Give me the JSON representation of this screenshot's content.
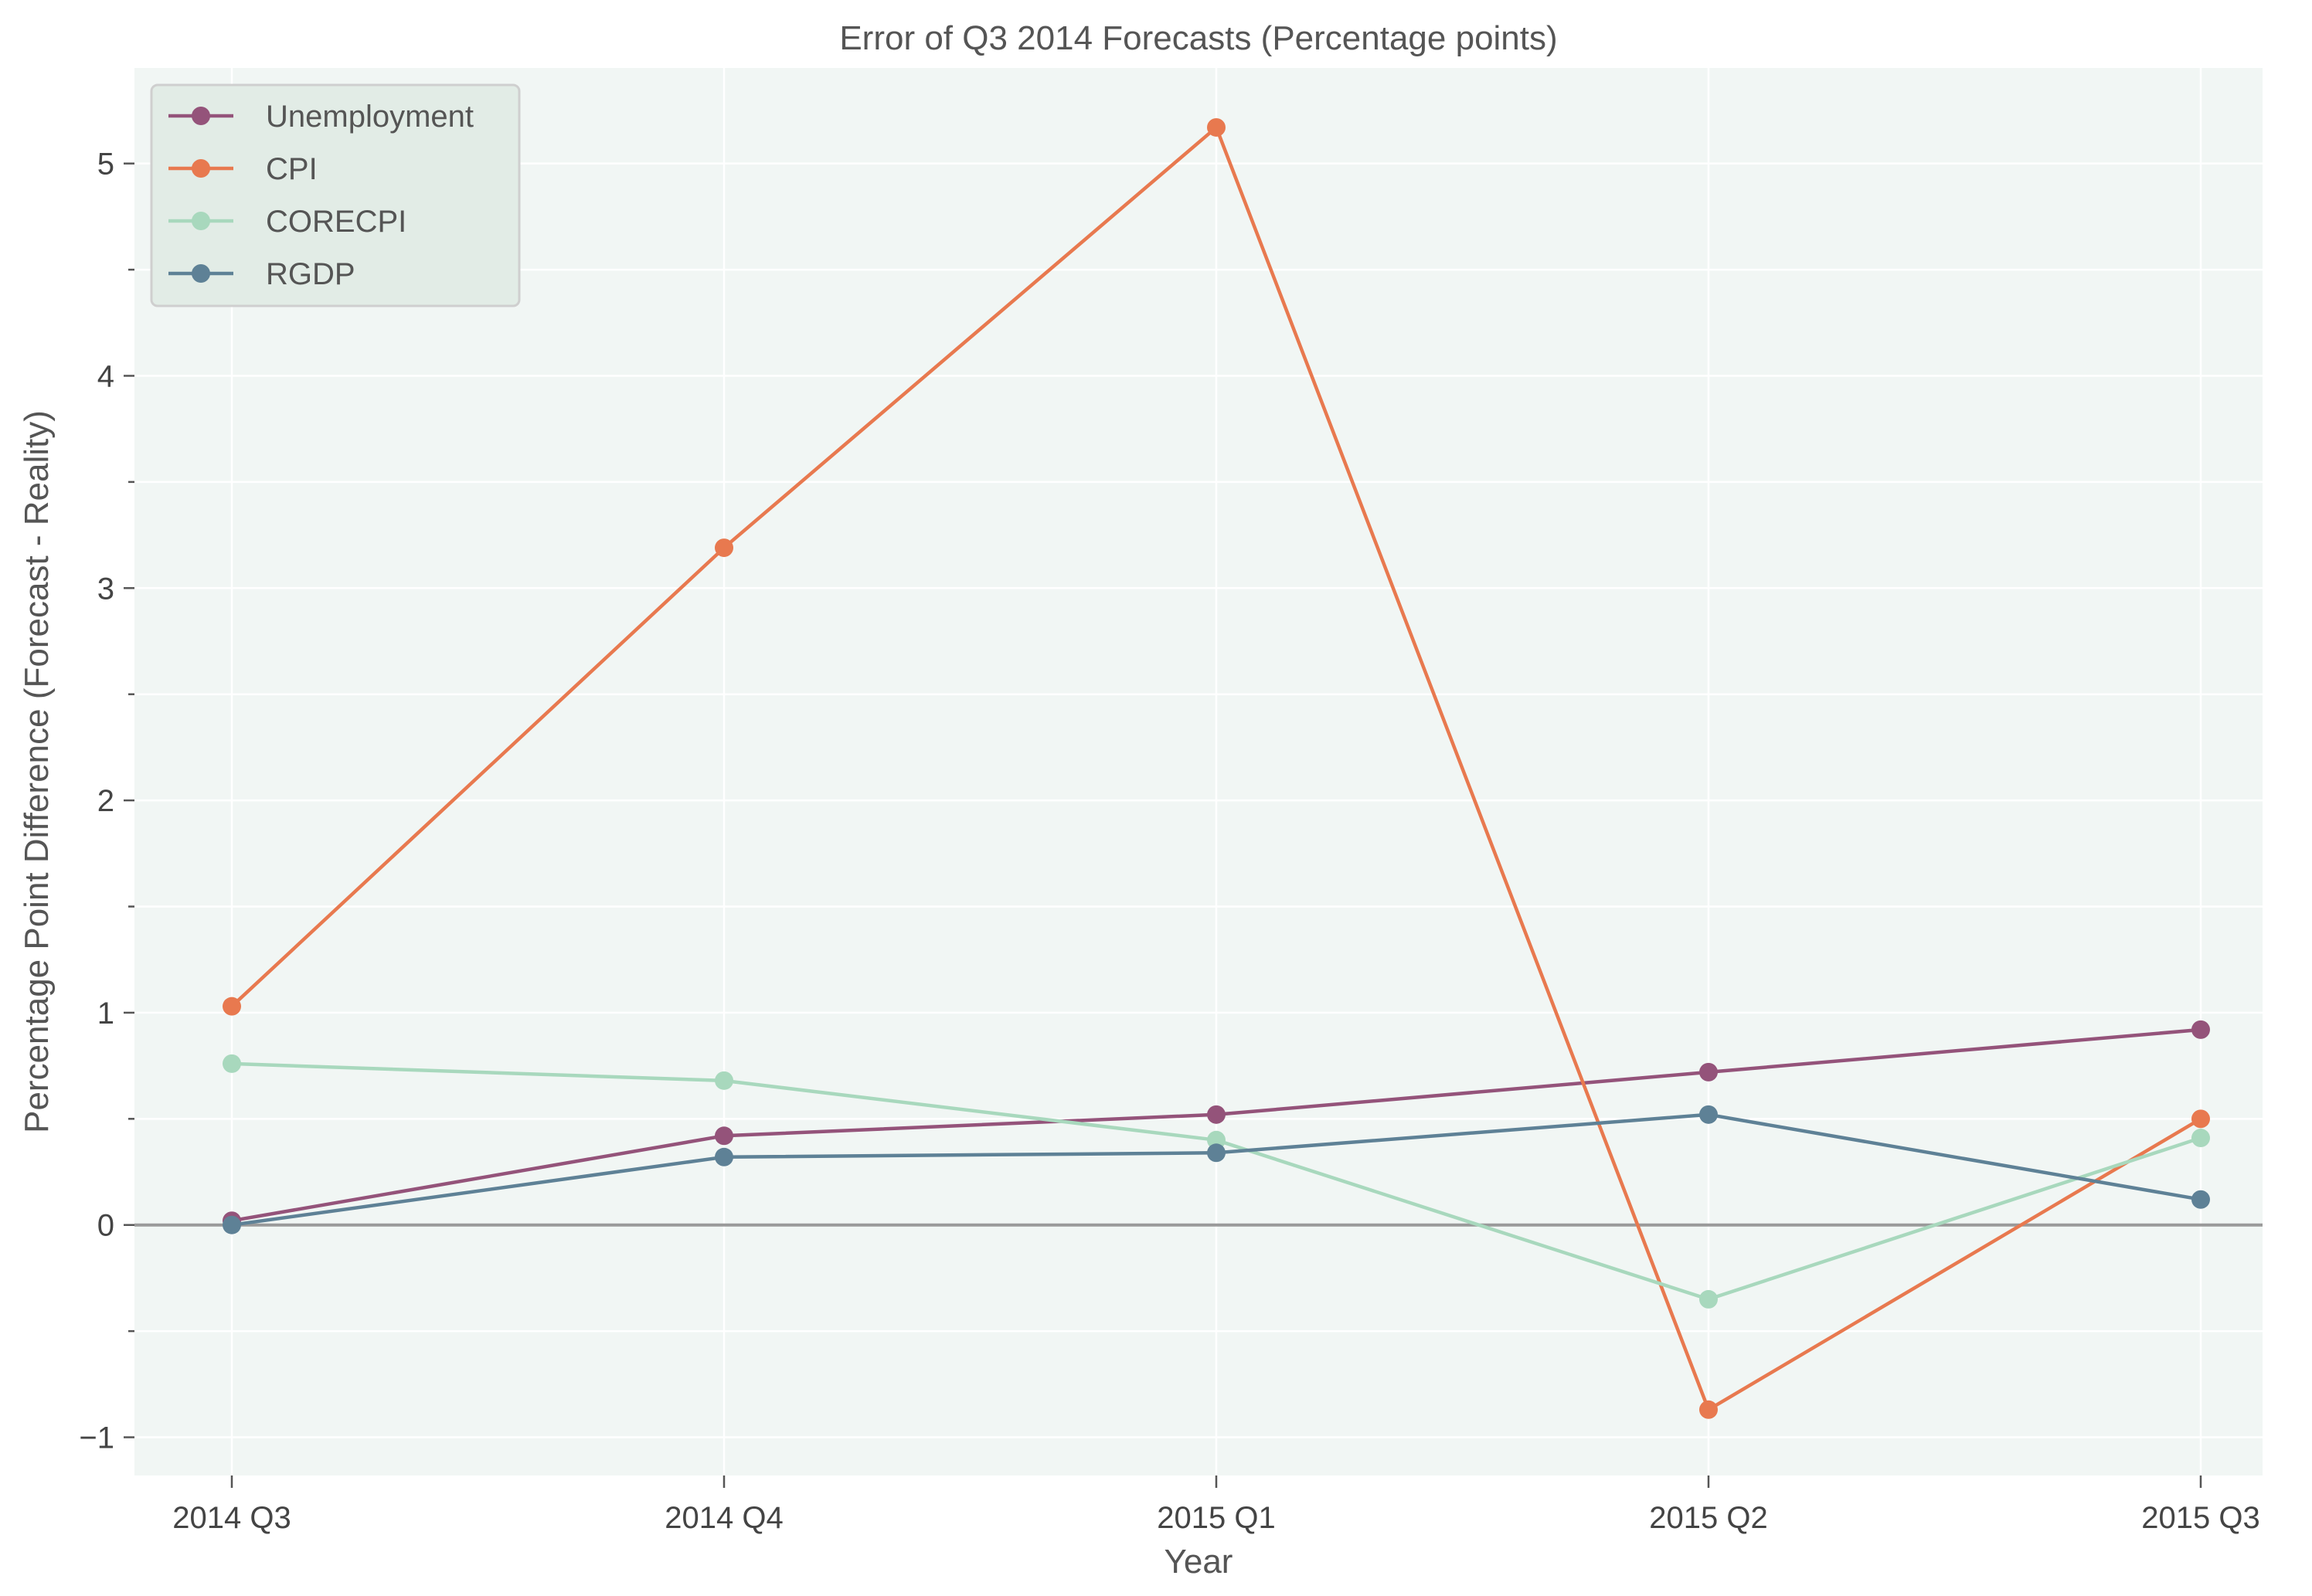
{
  "chart_data": {
    "type": "line",
    "title": "Error of Q3 2014 Forecasts (Percentage points)",
    "xlabel": "Year",
    "ylabel": "Percentage Point Difference (Forecast - Reality)",
    "categories": [
      "2014 Q3",
      "2014 Q4",
      "2015 Q1",
      "2015 Q2",
      "2015 Q3"
    ],
    "ylim": [
      -1.18,
      5.45
    ],
    "yticks": [
      -1,
      0,
      1,
      2,
      3,
      4,
      5
    ],
    "ytick_labels": [
      "−1",
      "0",
      "1",
      "2",
      "3",
      "4",
      "5"
    ],
    "grid": true,
    "legend_position": "top-left",
    "zero_line": true,
    "series": [
      {
        "name": "Unemployment",
        "color": "#94537a",
        "values": [
          0.02,
          0.42,
          0.52,
          0.72,
          0.92
        ]
      },
      {
        "name": "CPI",
        "color": "#e8794f",
        "values": [
          1.03,
          3.19,
          5.17,
          -0.87,
          0.5
        ]
      },
      {
        "name": "CORECPI",
        "color": "#a8d8bd",
        "values": [
          0.76,
          0.68,
          0.4,
          -0.35,
          0.41
        ]
      },
      {
        "name": "RGDP",
        "color": "#5e8196",
        "values": [
          0.0,
          0.32,
          0.34,
          0.52,
          0.12
        ]
      }
    ]
  }
}
